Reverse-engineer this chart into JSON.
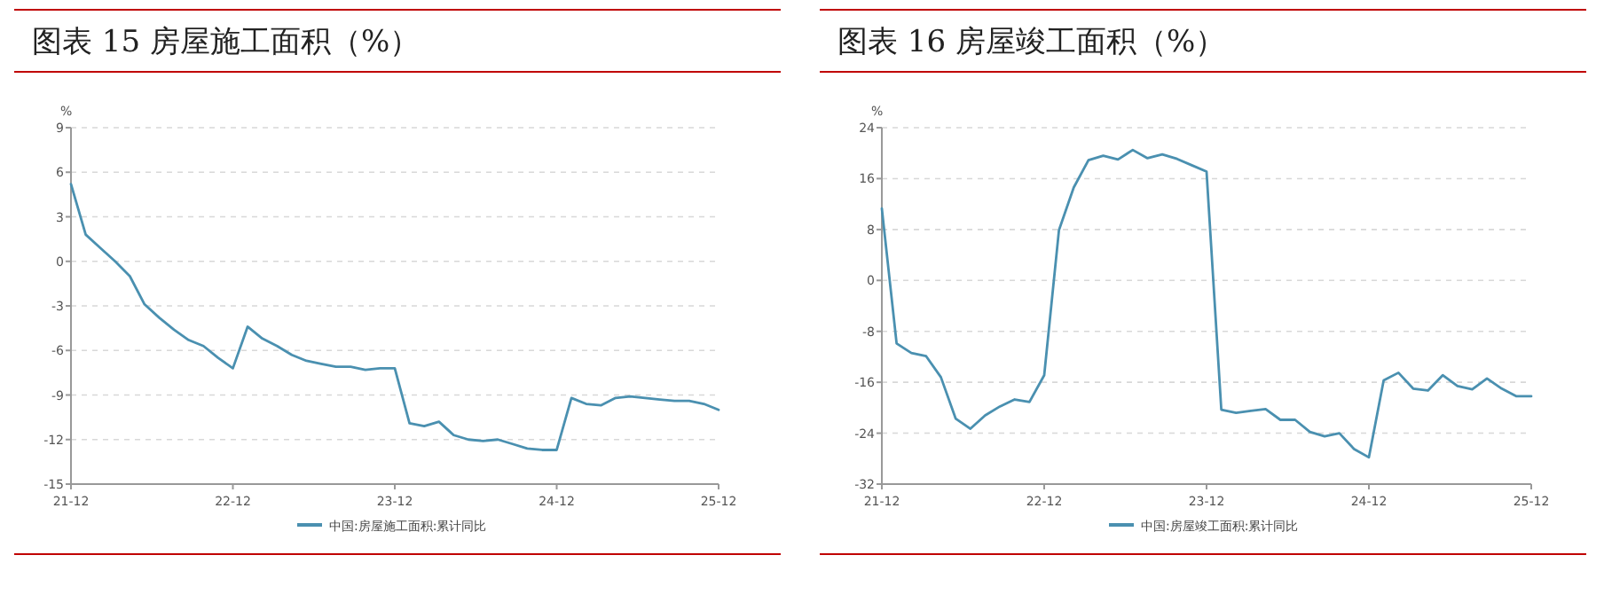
{
  "chart_data": [
    {
      "type": "line",
      "title": "图表 15  房屋施工面积（%）",
      "ylabel": "%",
      "categories": [
        "21-12",
        null,
        null,
        null,
        null,
        null,
        null,
        null,
        null,
        null,
        null,
        "22-12",
        null,
        null,
        null,
        null,
        null,
        null,
        null,
        null,
        null,
        null,
        "23-12",
        null,
        null,
        null,
        null,
        null,
        null,
        null,
        null,
        null,
        null,
        "24-12",
        null,
        null,
        null,
        null,
        null,
        null,
        null,
        null,
        null,
        null,
        "25-12"
      ],
      "series": [
        {
          "name": "中国:房屋施工面积:累计同比",
          "color": "#4a90b0",
          "values": [
            5.2,
            1.8,
            0.9,
            0,
            -1.0,
            -2.9,
            -3.8,
            -4.6,
            -5.3,
            -5.7,
            -6.5,
            -7.2,
            -4.4,
            -5.2,
            -5.7,
            -6.3,
            -6.7,
            -6.9,
            -7.1,
            -7.1,
            -7.3,
            -7.2,
            -7.2,
            -10.9,
            -11.1,
            -10.8,
            -11.7,
            -12.0,
            -12.1,
            -12.0,
            -12.3,
            -12.6,
            -12.7,
            -12.7,
            -9.2,
            -9.6,
            -9.7,
            -9.2,
            -9.1,
            -9.2,
            -9.3,
            -9.4,
            -9.4,
            -9.6,
            -10.0
          ]
        }
      ],
      "ylim": [
        -15,
        9
      ],
      "yticks": [
        -15,
        -12,
        -9,
        -6,
        -3,
        0,
        3,
        6,
        9
      ],
      "grid": "y",
      "legend": "bottom",
      "marker": "none",
      "line_style": "solid"
    },
    {
      "type": "line",
      "title": "图表 16  房屋竣工面积（%）",
      "ylabel": "%",
      "categories": [
        "21-12",
        null,
        null,
        null,
        null,
        null,
        null,
        null,
        null,
        null,
        null,
        "22-12",
        null,
        null,
        null,
        null,
        null,
        null,
        null,
        null,
        null,
        null,
        "23-12",
        null,
        null,
        null,
        null,
        null,
        null,
        null,
        null,
        null,
        null,
        "24-12",
        null,
        null,
        null,
        null,
        null,
        null,
        null,
        null,
        null,
        null,
        "25-12"
      ],
      "series": [
        {
          "name": "中国:房屋竣工面积:累计同比",
          "color": "#4a90b0",
          "values": [
            11.3,
            -9.9,
            -11.4,
            -11.9,
            -15.2,
            -21.7,
            -23.3,
            -21.2,
            -19.8,
            -18.7,
            -19.1,
            -14.9,
            7.9,
            14.6,
            18.9,
            19.6,
            19.0,
            20.5,
            19.2,
            19.8,
            19.1,
            18.1,
            17.1,
            -20.3,
            -20.8,
            -20.5,
            -20.2,
            -21.9,
            -21.9,
            -23.8,
            -24.5,
            -24.0,
            -26.5,
            -27.8,
            -15.7,
            -14.5,
            -17.0,
            -17.3,
            -14.9,
            -16.6,
            -17.1,
            -15.4,
            -17.0,
            -18.2,
            -18.2
          ]
        }
      ],
      "ylim": [
        -32,
        24
      ],
      "yticks": [
        -32,
        -24,
        -16,
        -8,
        0,
        8,
        16,
        24
      ],
      "grid": "y",
      "legend": "bottom",
      "marker": "none",
      "line_style": "solid"
    }
  ]
}
